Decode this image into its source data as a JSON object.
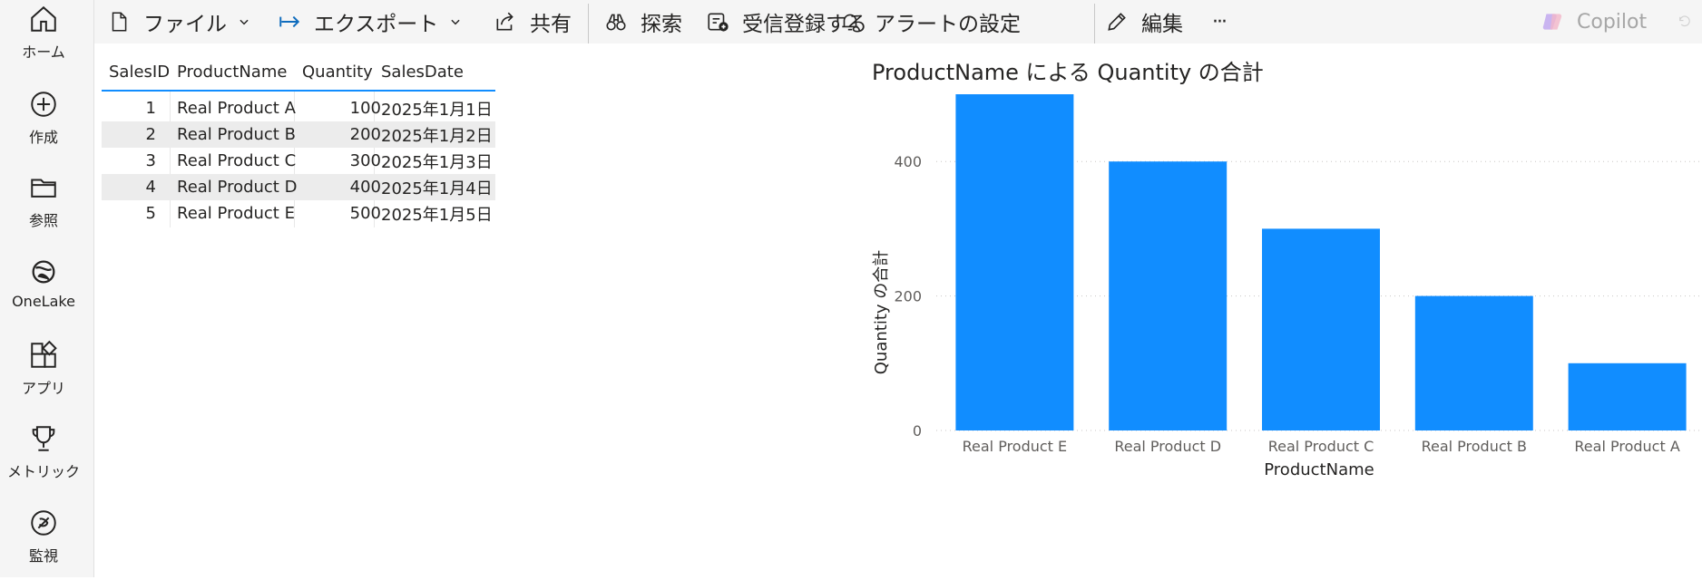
{
  "nav": {
    "items": [
      {
        "label": "ホーム",
        "icon": "home-icon"
      },
      {
        "label": "作成",
        "icon": "plus-circle-icon"
      },
      {
        "label": "参照",
        "icon": "folder-icon"
      },
      {
        "label": "OneLake",
        "icon": "onelake-icon"
      },
      {
        "label": "アプリ",
        "icon": "apps-icon"
      },
      {
        "label": "メトリック",
        "icon": "trophy-icon"
      },
      {
        "label": "監視",
        "icon": "monitor-icon"
      }
    ]
  },
  "toolbar": {
    "file": "ファイル",
    "export": "エクスポート",
    "share": "共有",
    "explore": "探索",
    "subscribe": "受信登録する",
    "alerts": "アラートの設定",
    "edit": "編集",
    "more": "···",
    "copilot": "Copilot"
  },
  "table": {
    "columns": [
      "SalesID",
      "ProductName",
      "Quantity",
      "SalesDate"
    ],
    "rows": [
      [
        "1",
        "Real Product A",
        "100",
        "2025年1月1日"
      ],
      [
        "2",
        "Real Product B",
        "200",
        "2025年1月2日"
      ],
      [
        "3",
        "Real Product C",
        "300",
        "2025年1月3日"
      ],
      [
        "4",
        "Real Product D",
        "400",
        "2025年1月4日"
      ],
      [
        "5",
        "Real Product E",
        "500",
        "2025年1月5日"
      ]
    ]
  },
  "chart_data": {
    "type": "bar",
    "title": "ProductName による Quantity の合計",
    "xlabel": "ProductName",
    "ylabel": "Quantity の合計",
    "categories": [
      "Real Product E",
      "Real Product D",
      "Real Product C",
      "Real Product B",
      "Real Product A"
    ],
    "values": [
      500,
      400,
      300,
      200,
      100
    ],
    "ylim": [
      0,
      500
    ],
    "yticks": [
      0,
      200,
      400
    ],
    "grid": true,
    "color": "#118dff"
  }
}
